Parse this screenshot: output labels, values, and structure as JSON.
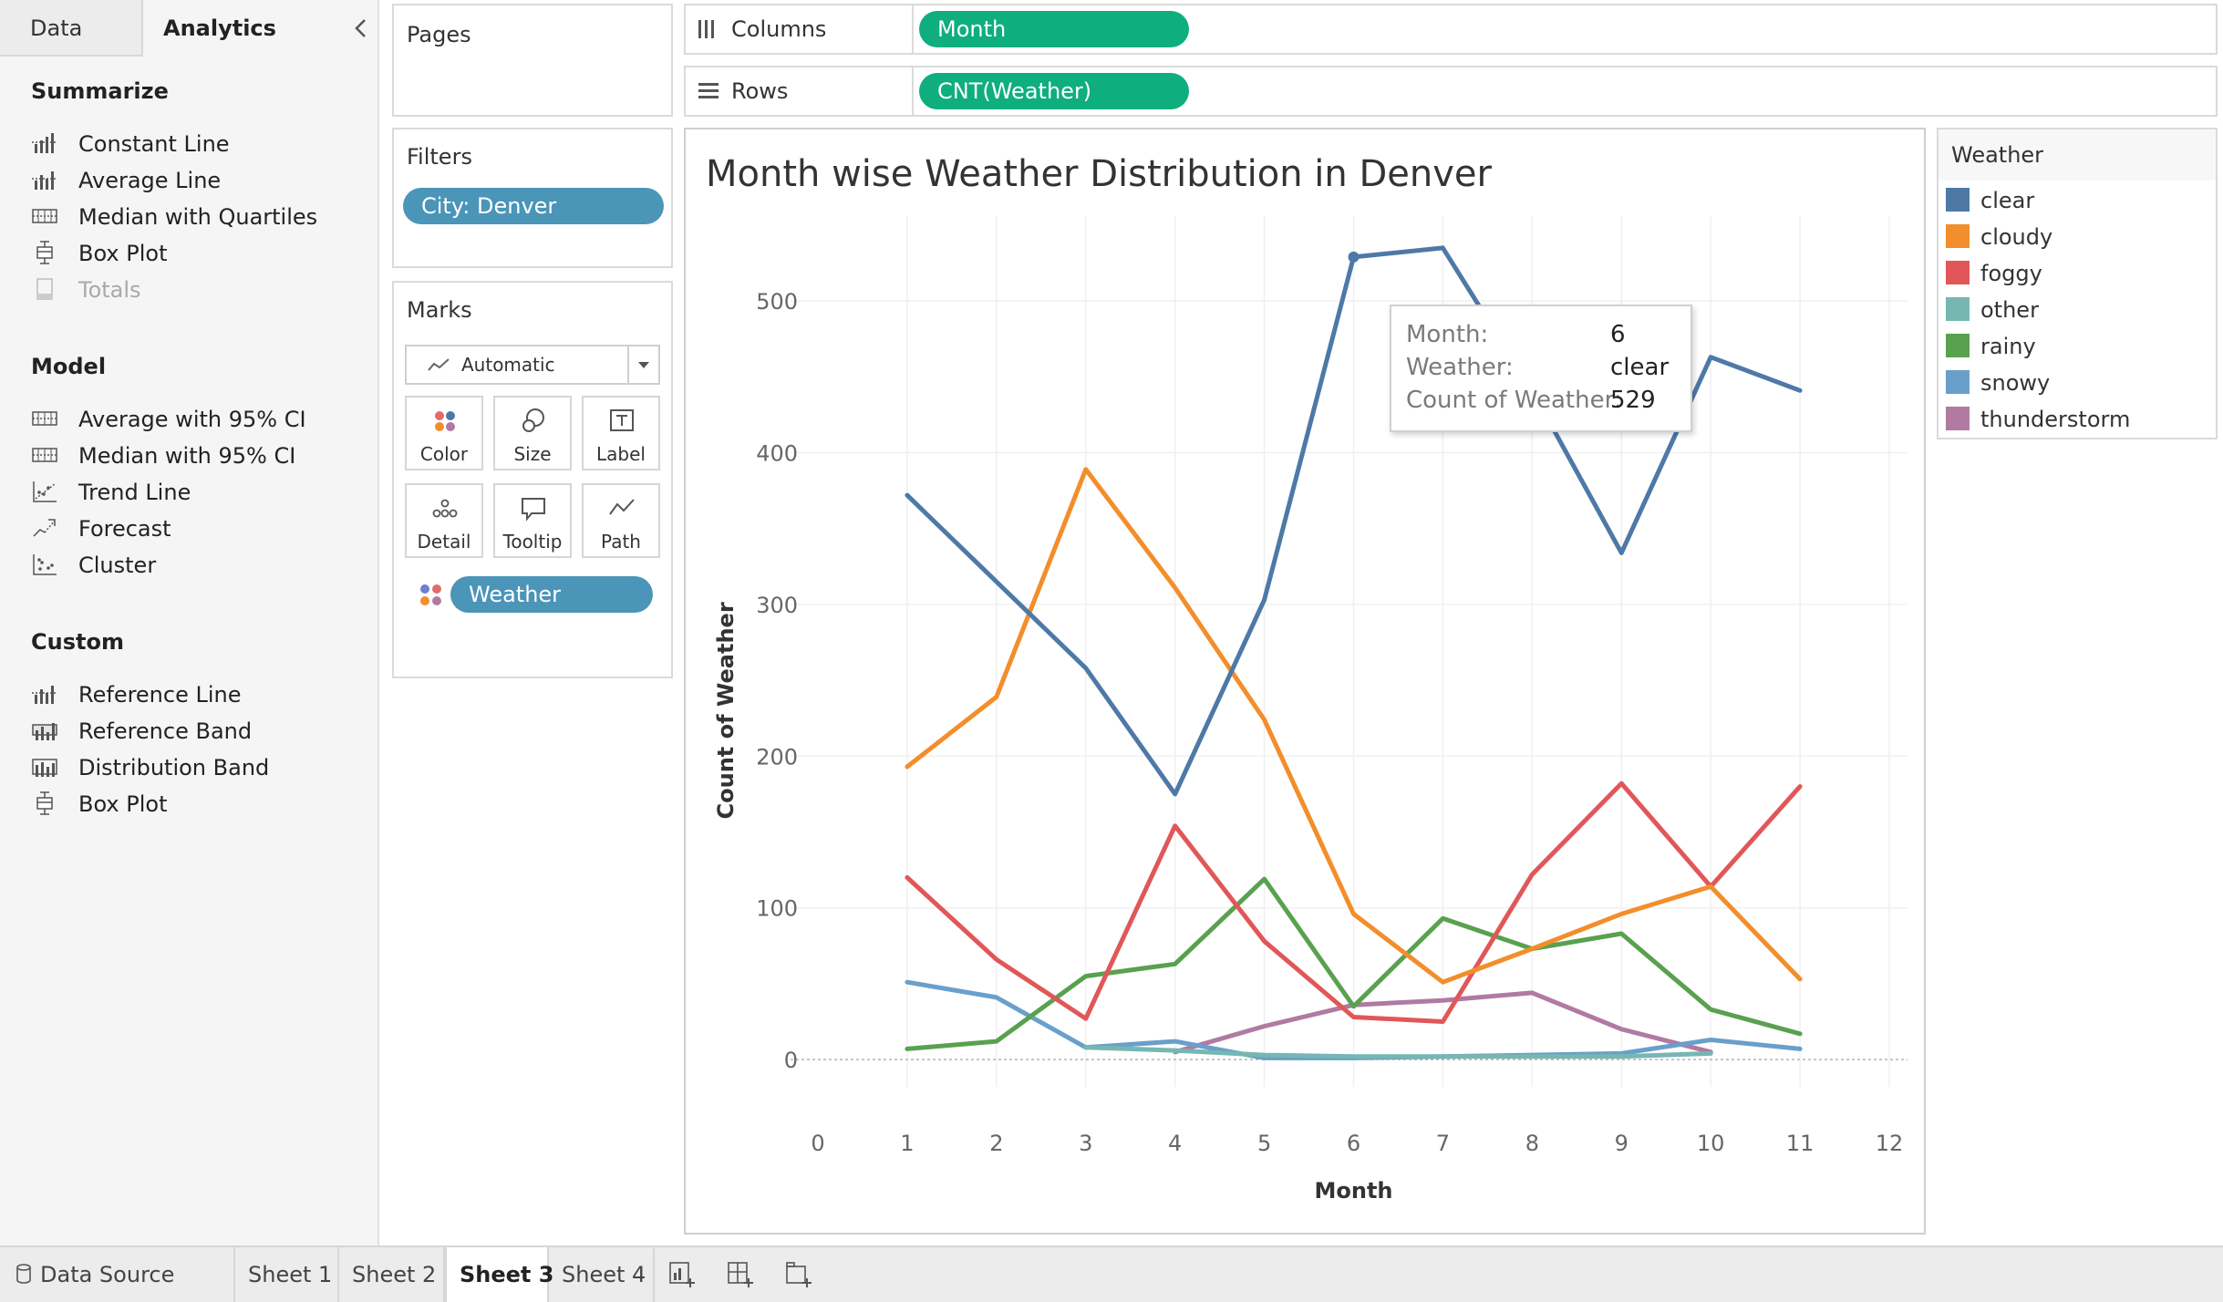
{
  "left_pane": {
    "tabs": {
      "data": "Data",
      "analytics": "Analytics"
    },
    "sections": [
      {
        "title": "Summarize",
        "items": [
          {
            "label": "Constant Line",
            "icon": "constant-line-icon",
            "enabled": true
          },
          {
            "label": "Average Line",
            "icon": "average-line-icon",
            "enabled": true
          },
          {
            "label": "Median with Quartiles",
            "icon": "median-quartiles-icon",
            "enabled": true
          },
          {
            "label": "Box Plot",
            "icon": "box-plot-icon",
            "enabled": true
          },
          {
            "label": "Totals",
            "icon": "totals-icon",
            "enabled": false
          }
        ]
      },
      {
        "title": "Model",
        "items": [
          {
            "label": "Average with 95% CI",
            "icon": "average-ci-icon",
            "enabled": true
          },
          {
            "label": "Median with 95% CI",
            "icon": "median-ci-icon",
            "enabled": true
          },
          {
            "label": "Trend Line",
            "icon": "trend-line-icon",
            "enabled": true
          },
          {
            "label": "Forecast",
            "icon": "forecast-icon",
            "enabled": true
          },
          {
            "label": "Cluster",
            "icon": "cluster-icon",
            "enabled": true
          }
        ]
      },
      {
        "title": "Custom",
        "items": [
          {
            "label": "Reference Line",
            "icon": "reference-line-icon",
            "enabled": true
          },
          {
            "label": "Reference Band",
            "icon": "reference-band-icon",
            "enabled": true
          },
          {
            "label": "Distribution Band",
            "icon": "distribution-band-icon",
            "enabled": true
          },
          {
            "label": "Box Plot",
            "icon": "box-plot-icon",
            "enabled": true
          }
        ]
      }
    ]
  },
  "pages": {
    "title": "Pages"
  },
  "filters": {
    "title": "Filters",
    "pills": [
      "City: Denver"
    ]
  },
  "marks": {
    "title": "Marks",
    "mark_type": "Automatic",
    "buttons": [
      "Color",
      "Size",
      "Label",
      "Detail",
      "Tooltip",
      "Path"
    ],
    "field_pill": "Weather"
  },
  "shelves": {
    "columns": {
      "label": "Columns",
      "pill": "Month"
    },
    "rows": {
      "label": "Rows",
      "pill": "CNT(Weather)"
    }
  },
  "colors": {
    "clear": "#4e79a7",
    "cloudy": "#f28e2b",
    "foggy": "#e15759",
    "other": "#76b7b2",
    "rainy": "#59a14f",
    "snowy": "#6a9fcb",
    "thunderstorm": "#b07aa1",
    "pill_green": "#0fae7e",
    "pill_blue": "#4a95b8"
  },
  "chart_data": {
    "type": "line",
    "title": "Month wise Weather Distribution in Denver",
    "xlabel": "Month",
    "ylabel": "Count of Weather",
    "x_ticks": [
      0,
      1,
      2,
      3,
      4,
      5,
      6,
      7,
      8,
      9,
      10,
      11,
      12
    ],
    "y_ticks": [
      0,
      100,
      200,
      300,
      400,
      500
    ],
    "xlim": [
      0,
      12
    ],
    "ylim": [
      -30,
      565
    ],
    "grid": true,
    "x": [
      1,
      2,
      3,
      4,
      5,
      6,
      7,
      8,
      9,
      10,
      11
    ],
    "series": [
      {
        "name": "clear",
        "color": "#4e79a7",
        "values": [
          372,
          315,
          258,
          175,
          303,
          529,
          535,
          441,
          334,
          463,
          441
        ]
      },
      {
        "name": "cloudy",
        "color": "#f28e2b",
        "values": [
          193,
          239,
          389,
          311,
          224,
          96,
          51,
          73,
          96,
          114,
          53
        ]
      },
      {
        "name": "foggy",
        "color": "#e15759",
        "values": [
          120,
          66,
          27,
          154,
          78,
          28,
          25,
          122,
          182,
          114,
          180
        ]
      },
      {
        "name": "other",
        "color": "#76b7b2",
        "values": [
          null,
          null,
          8,
          6,
          3,
          2,
          2,
          2,
          2,
          4,
          null
        ]
      },
      {
        "name": "rainy",
        "color": "#59a14f",
        "values": [
          7,
          12,
          55,
          63,
          119,
          35,
          93,
          73,
          83,
          33,
          17
        ]
      },
      {
        "name": "snowy",
        "color": "#6a9fcb",
        "values": [
          51,
          41,
          8,
          12,
          1,
          1,
          2,
          3,
          4,
          13,
          7
        ]
      },
      {
        "name": "thunderstorm",
        "color": "#b07aa1",
        "values": [
          null,
          null,
          null,
          5,
          22,
          36,
          39,
          44,
          20,
          5,
          null
        ]
      }
    ],
    "legend_position": "right"
  },
  "legend": {
    "title": "Weather",
    "items": [
      "clear",
      "cloudy",
      "foggy",
      "other",
      "rainy",
      "snowy",
      "thunderstorm"
    ]
  },
  "tooltip": {
    "rows": [
      {
        "key": "Month:",
        "value": "6"
      },
      {
        "key": "Weather:",
        "value": "clear"
      },
      {
        "key": "Count of Weather:",
        "value": "529"
      }
    ]
  },
  "bottom_tabs": {
    "data_source": "Data Source",
    "sheets": [
      "Sheet 1",
      "Sheet 2",
      "Sheet 3",
      "Sheet 4"
    ],
    "active": "Sheet 3"
  }
}
